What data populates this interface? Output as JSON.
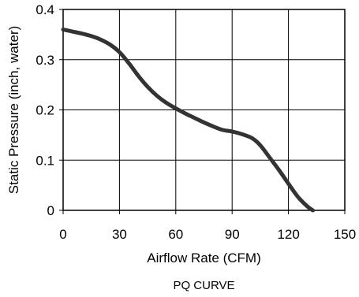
{
  "chart_data": {
    "type": "line",
    "title": "",
    "caption": "PQ CURVE",
    "xlabel": "Airflow Rate (CFM)",
    "ylabel": "Static Pressure (inch, water)",
    "xlim": [
      0,
      150
    ],
    "ylim": [
      0,
      0.4
    ],
    "x_ticks": [
      "0",
      "30",
      "60",
      "90",
      "120",
      "150"
    ],
    "y_ticks": [
      "0",
      "0.1",
      "0.2",
      "0.3",
      "0.4"
    ],
    "x_tick_values": [
      0,
      30,
      60,
      90,
      120,
      150
    ],
    "y_tick_values": [
      0,
      0.1,
      0.2,
      0.3,
      0.4
    ],
    "grid": true,
    "legend": "none",
    "line_color": "#333333",
    "series": [
      {
        "x": [
          0,
          5,
          10,
          15,
          20,
          25,
          30,
          35,
          40,
          45,
          50,
          55,
          60,
          65,
          70,
          75,
          80,
          85,
          90,
          95,
          100,
          103,
          106,
          110,
          115,
          120,
          125,
          130,
          133
        ],
        "y": [
          0.36,
          0.356,
          0.352,
          0.347,
          0.34,
          0.33,
          0.315,
          0.293,
          0.268,
          0.246,
          0.228,
          0.214,
          0.203,
          0.193,
          0.184,
          0.175,
          0.167,
          0.16,
          0.157,
          0.152,
          0.145,
          0.137,
          0.125,
          0.105,
          0.08,
          0.053,
          0.027,
          0.008,
          0.0
        ]
      }
    ]
  }
}
